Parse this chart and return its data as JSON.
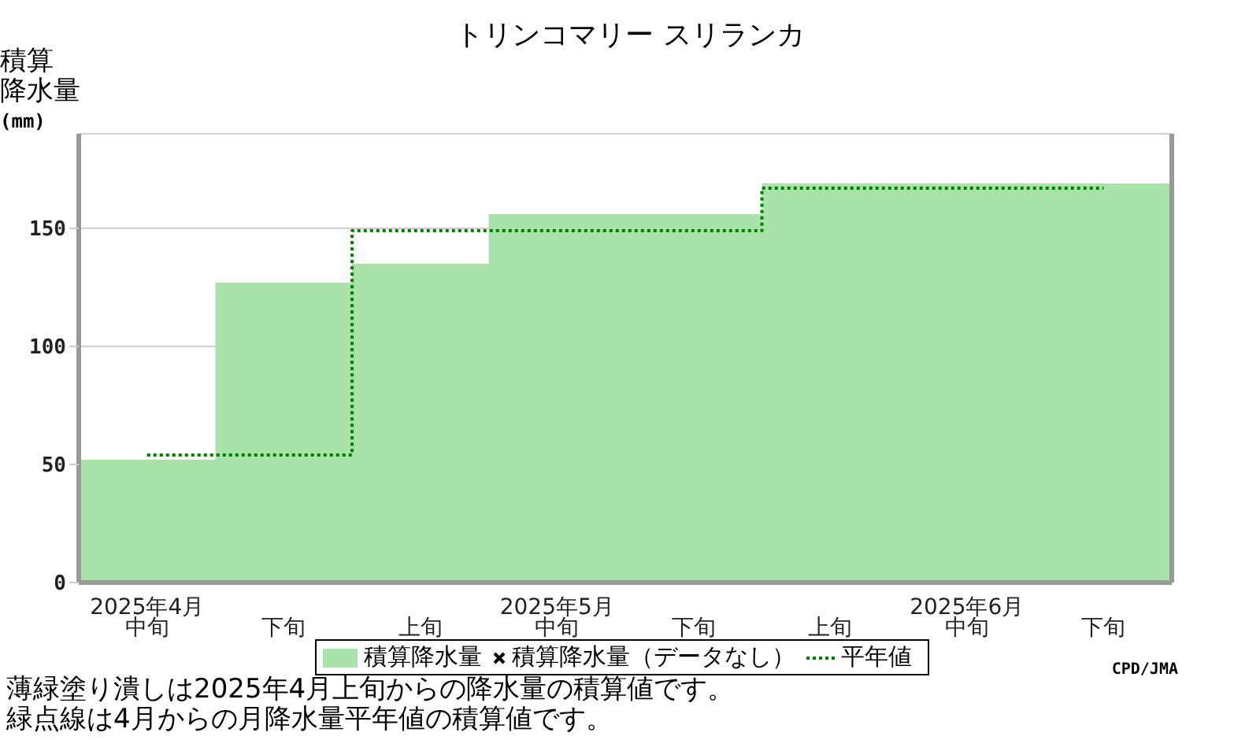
{
  "chart_data": {
    "type": "bar",
    "title": "トリンコマリー スリランカ",
    "ylabel": "積算降水量(mm)",
    "categories": [
      "2025年4月中旬",
      "下旬",
      "上旬",
      "2025年5月中旬",
      "下旬",
      "上旬",
      "2025年6月中旬",
      "下旬"
    ],
    "series": [
      {
        "name": "積算降水量",
        "color": "#aae3aa",
        "values": [
          52,
          127,
          135,
          156,
          156,
          169,
          169,
          169
        ]
      },
      {
        "name": "積算降水量（データなし）",
        "type": "scatter",
        "marker": "cross",
        "color": "#000000",
        "values": [
          null,
          null,
          null,
          null,
          null,
          null,
          null,
          null
        ]
      },
      {
        "name": "平年値",
        "type": "step",
        "color": "#008000",
        "line_style": "dotted",
        "values": [
          54,
          54,
          149,
          149,
          149,
          167,
          167,
          167
        ]
      }
    ],
    "ylim": [
      0,
      190
    ],
    "yticks": [
      0,
      50,
      100,
      150
    ],
    "grid": "y",
    "legend": "bottom",
    "annotations": [
      "CPD/JMA",
      "薄緑塗り潰しは2025年4月上旬からの降水量の積算値です。",
      "緑点線は4月からの月降水量平年値の積算値です。"
    ]
  }
}
